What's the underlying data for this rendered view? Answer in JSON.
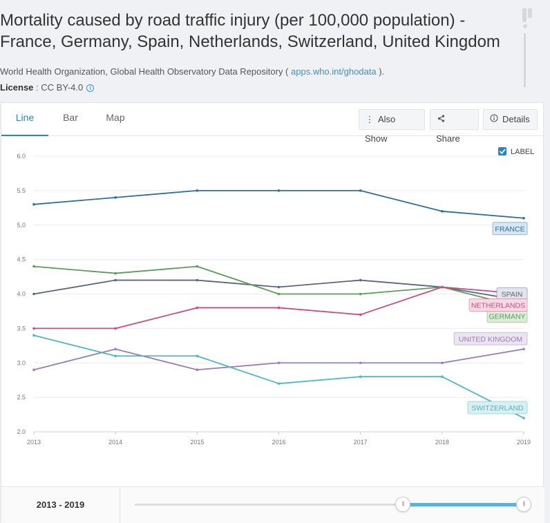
{
  "header": {
    "title": "Mortality caused by road traffic injury (per 100,000 population) - France, Germany, Spain, Netherlands, Switzerland, United Kingdom",
    "source_prefix": "World Health Organization, Global Health Observatory Data Repository ( ",
    "source_link": "apps.who.int/ghodata",
    "source_suffix": " ).",
    "license_label": "License",
    "license_value": " : CC BY-4.0"
  },
  "tabs": [
    {
      "label": "Line",
      "active": true
    },
    {
      "label": "Bar",
      "active": false
    },
    {
      "label": "Map",
      "active": false
    }
  ],
  "toolbar": {
    "also_show": "Also Show",
    "share": "Share",
    "details": "Details"
  },
  "label_toggle": {
    "label": "LABEL",
    "checked": true
  },
  "range": {
    "label": "2013 - 2019",
    "start_fraction": 0.667,
    "end_fraction": 1.0
  },
  "chart_data": {
    "type": "line",
    "title": "Mortality caused by road traffic injury (per 100,000 population)",
    "xlabel": "",
    "ylabel": "",
    "x": [
      2013,
      2014,
      2015,
      2016,
      2017,
      2018,
      2019
    ],
    "ylim": [
      2.0,
      6.0
    ],
    "yticks": [
      "2.0",
      "2.5",
      "3.0",
      "3.5",
      "4.0",
      "4.5",
      "5.0",
      "5.5",
      "6.0"
    ],
    "xticks": [
      "2013",
      "2014",
      "2015",
      "2016",
      "2017",
      "2018",
      "2019"
    ],
    "grid": true,
    "series": [
      {
        "name": "France",
        "label": "FRANCE",
        "color": "#2c6e9e",
        "label_bg": "#d6e7f3",
        "values": [
          5.3,
          5.4,
          5.5,
          5.5,
          5.5,
          5.2,
          5.1
        ]
      },
      {
        "name": "Spain",
        "label": "SPAIN",
        "color": "#59667f",
        "label_bg": "#e3e5ec",
        "values": [
          4.0,
          4.2,
          4.2,
          4.1,
          4.2,
          4.1,
          3.9
        ]
      },
      {
        "name": "Germany",
        "label": "GERMANY",
        "color": "#5c9d5a",
        "label_bg": "#dcecd9",
        "values": [
          4.4,
          4.3,
          4.4,
          4.0,
          4.0,
          4.1,
          3.8
        ]
      },
      {
        "name": "Netherlands",
        "label": "NETHERLANDS",
        "color": "#cc4a7e",
        "label_bg": "#f6dbe6",
        "values": [
          3.5,
          3.5,
          3.8,
          3.8,
          3.7,
          4.1,
          4.0
        ]
      },
      {
        "name": "United Kingdom",
        "label": "UNITED KINGDOM",
        "color": "#9a7cb5",
        "label_bg": "#ebe4f1",
        "values": [
          2.9,
          3.2,
          2.9,
          3.0,
          3.0,
          3.0,
          3.2
        ]
      },
      {
        "name": "Switzerland",
        "label": "SWITZERLAND",
        "color": "#4cb8c4",
        "label_bg": "#d8f0f2",
        "values": [
          3.4,
          3.1,
          3.1,
          2.7,
          2.8,
          2.8,
          2.2
        ]
      }
    ]
  }
}
